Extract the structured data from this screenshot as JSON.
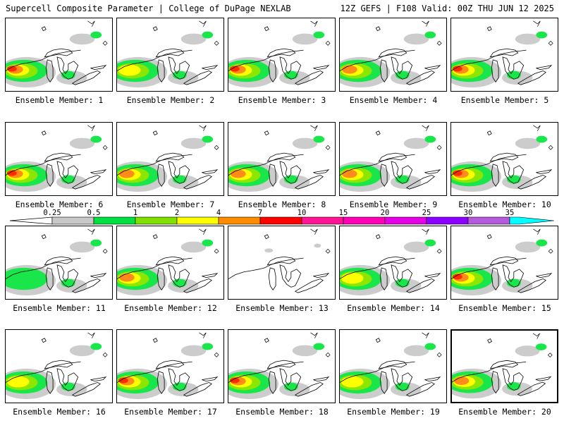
{
  "header": {
    "title_left": "Supercell Composite Parameter | College of DuPage NEXLAB",
    "title_right": "12Z GEFS | F108 Valid: 00Z THU JUN 12 2025"
  },
  "colorbar": {
    "labels": [
      "0.25",
      "0.5",
      "1",
      "2",
      "4",
      "7",
      "10",
      "15",
      "20",
      "25",
      "30",
      "35"
    ],
    "colors": [
      "#c8c8c8",
      "#00e040",
      "#7fe000",
      "#ffff00",
      "#ff8c00",
      "#ff0000",
      "#ff1493",
      "#ff00b4",
      "#e600e6",
      "#8c00ff",
      "#b45adc",
      "#00ffff"
    ]
  },
  "shading_colors": {
    "lt": "#cccccc",
    "g": "#19e64b",
    "yg": "#8ce600",
    "y": "#ffff00",
    "o": "#ff8c1a",
    "r": "#ff2a00"
  },
  "panels": [
    {
      "label": "Ensemble Member: 1",
      "level": "red",
      "selected": false
    },
    {
      "label": "Ensemble Member: 2",
      "level": "yellow",
      "selected": false
    },
    {
      "label": "Ensemble Member: 3",
      "level": "red",
      "selected": false
    },
    {
      "label": "Ensemble Member: 4",
      "level": "orange",
      "selected": false
    },
    {
      "label": "Ensemble Member: 5",
      "level": "red",
      "selected": false
    },
    {
      "label": "Ensemble Member: 6",
      "level": "red",
      "selected": false
    },
    {
      "label": "Ensemble Member: 7",
      "level": "orange",
      "selected": false
    },
    {
      "label": "Ensemble Member: 8",
      "level": "orange",
      "selected": false
    },
    {
      "label": "Ensemble Member: 9",
      "level": "orange",
      "selected": false
    },
    {
      "label": "Ensemble Member: 10",
      "level": "red",
      "selected": false
    },
    {
      "label": "Ensemble Member: 11",
      "level": "green",
      "selected": false
    },
    {
      "label": "Ensemble Member: 12",
      "level": "orange",
      "selected": false
    },
    {
      "label": "Ensemble Member: 13",
      "level": "none",
      "selected": false
    },
    {
      "label": "Ensemble Member: 14",
      "level": "yellow",
      "selected": false
    },
    {
      "label": "Ensemble Member: 15",
      "level": "red",
      "selected": false
    },
    {
      "label": "Ensemble Member: 16",
      "level": "yellow",
      "selected": false
    },
    {
      "label": "Ensemble Member: 17",
      "level": "red",
      "selected": false
    },
    {
      "label": "Ensemble Member: 18",
      "level": "red",
      "selected": false
    },
    {
      "label": "Ensemble Member: 19",
      "level": "yellow",
      "selected": false
    },
    {
      "label": "Ensemble Member: 20",
      "level": "orange",
      "selected": true
    }
  ]
}
